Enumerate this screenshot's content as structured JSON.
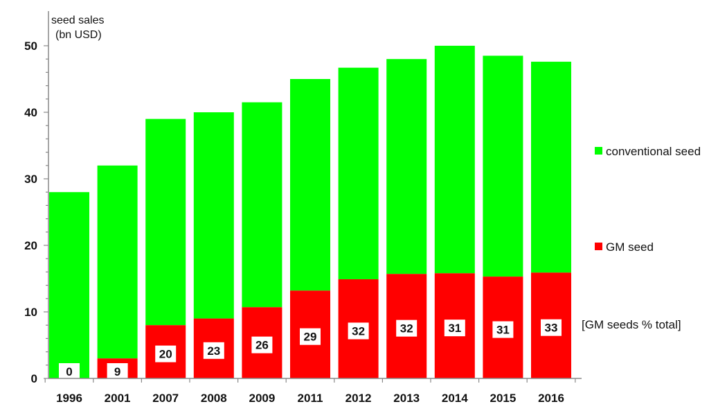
{
  "chart_data": {
    "type": "bar",
    "stacked": true,
    "ylabel_line1": "seed sales",
    "ylabel_line2": "(bn USD)",
    "ylim": [
      0,
      50
    ],
    "yticks": [
      0,
      10,
      20,
      30,
      40,
      50
    ],
    "categories": [
      "1996",
      "2001",
      "2007",
      "2008",
      "2009",
      "2011",
      "2012",
      "2013",
      "2014",
      "2015",
      "2016"
    ],
    "series": [
      {
        "name": "GM seed",
        "color": "#ff0000",
        "values": [
          0,
          3,
          8,
          9,
          10.7,
          13.2,
          14.9,
          15.7,
          15.8,
          15.3,
          15.9
        ]
      },
      {
        "name": "conventional seed",
        "color": "#00ff00",
        "values": [
          28,
          29,
          31,
          31,
          30.8,
          31.8,
          31.8,
          32.3,
          34.2,
          33.2,
          31.7
        ]
      }
    ],
    "gm_share_label": "[GM  seeds % total]",
    "gm_share_percent": [
      "0",
      "9",
      "20",
      "23",
      "26",
      "29",
      "32",
      "32",
      "31",
      "31",
      "33"
    ],
    "legend": [
      {
        "name": "conventional seed",
        "color": "#00ff00"
      },
      {
        "name": "GM seed",
        "color": "#ff0000"
      }
    ],
    "legend_placement": "right",
    "grid": false
  }
}
